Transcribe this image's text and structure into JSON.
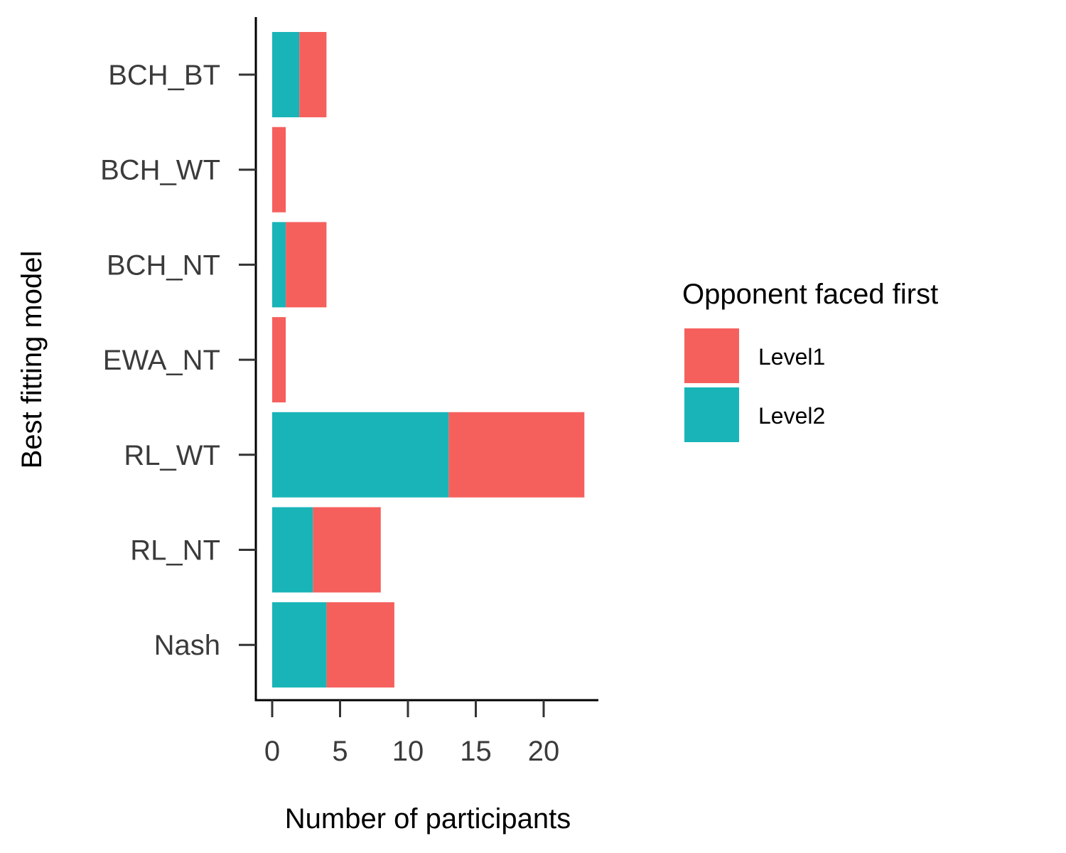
{
  "chart_data": {
    "type": "bar",
    "orientation": "horizontal",
    "stacked": true,
    "categories": [
      "BCH_BT",
      "BCH_WT",
      "BCH_NT",
      "EWA_NT",
      "RL_WT",
      "RL_NT",
      "Nash"
    ],
    "series": [
      {
        "name": "Level2",
        "color": "#19B4B8",
        "values": [
          2,
          0,
          1,
          0,
          13,
          3,
          4
        ]
      },
      {
        "name": "Level1",
        "color": "#F5605D",
        "values": [
          2,
          1,
          3,
          1,
          10,
          5,
          5
        ]
      }
    ],
    "xlabel": "Number of participants",
    "ylabel": "Best fitting model",
    "xlim": [
      0,
      24
    ],
    "xticks": [
      0,
      5,
      10,
      15,
      20
    ],
    "grid": false,
    "legend": {
      "title": "Opponent faced first",
      "position": "right",
      "entries": [
        {
          "label": "Level1",
          "color": "#F5605D"
        },
        {
          "label": "Level2",
          "color": "#19B4B8"
        }
      ]
    }
  }
}
